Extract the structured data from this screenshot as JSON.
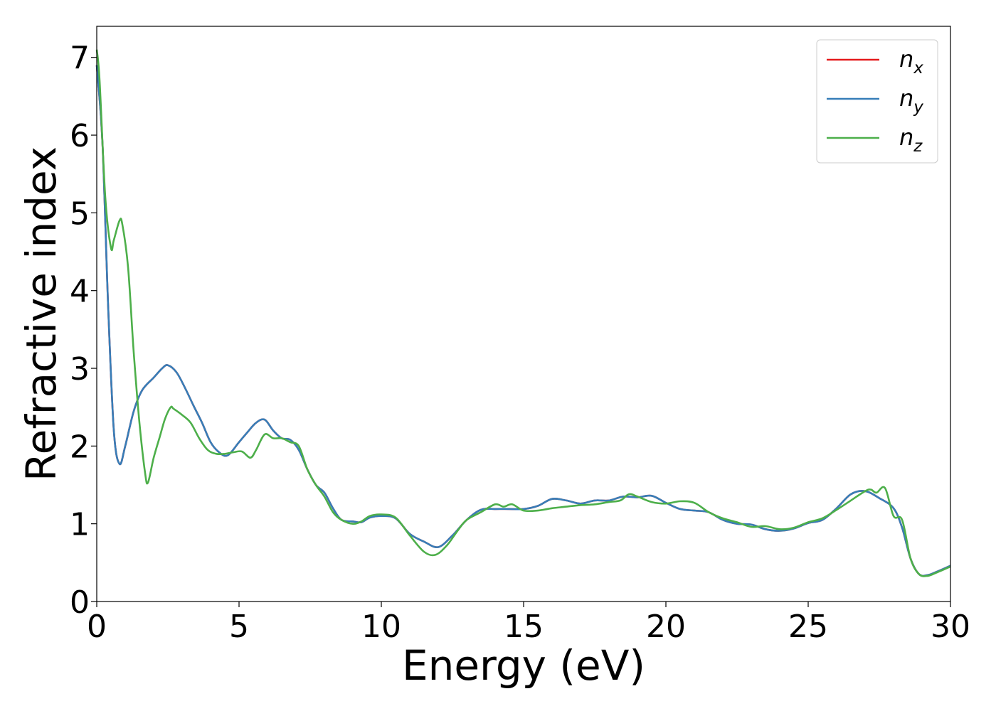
{
  "chart_data": {
    "type": "line",
    "title": "",
    "xlabel": "Energy (eV)",
    "ylabel": "Refractive index",
    "xlim": [
      0,
      30
    ],
    "ylim": [
      0,
      7.4
    ],
    "xticks": [
      0,
      5,
      10,
      15,
      20,
      25,
      30
    ],
    "yticks": [
      0,
      1,
      2,
      3,
      4,
      5,
      6,
      7
    ],
    "grid": false,
    "legend_position": "top-right",
    "series": [
      {
        "name": "n",
        "subscript": "x",
        "color": "#e41a1c",
        "x": [
          0,
          0.2,
          0.4,
          0.6,
          0.8,
          1.0,
          1.3,
          1.6,
          2.0,
          2.3,
          2.5,
          2.8,
          3.1,
          3.4,
          3.7,
          4.0,
          4.3,
          4.6,
          5.0,
          5.3,
          5.6,
          5.9,
          6.2,
          6.5,
          6.8,
          7.1,
          7.4,
          7.7,
          8.0,
          8.3,
          8.6,
          9.0,
          9.3,
          9.6,
          10.0,
          10.5,
          11.0,
          11.5,
          12.0,
          12.5,
          13.0,
          13.5,
          14.0,
          14.5,
          15.0,
          15.5,
          16.0,
          16.5,
          17.0,
          17.5,
          18.0,
          18.5,
          19.0,
          19.5,
          20.0,
          20.5,
          21.0,
          21.5,
          22.0,
          22.5,
          23.0,
          23.5,
          24.0,
          24.5,
          25.0,
          25.5,
          26.0,
          26.5,
          27.0,
          27.5,
          28.0,
          28.3,
          28.6,
          28.9,
          29.2,
          29.5,
          30.0
        ],
        "y": [
          6.9,
          5.9,
          3.8,
          2.2,
          1.77,
          2.0,
          2.45,
          2.72,
          2.88,
          3.0,
          3.04,
          2.95,
          2.75,
          2.52,
          2.3,
          2.05,
          1.92,
          1.88,
          2.05,
          2.18,
          2.3,
          2.34,
          2.2,
          2.1,
          2.08,
          1.95,
          1.7,
          1.5,
          1.4,
          1.2,
          1.05,
          1.03,
          1.02,
          1.08,
          1.1,
          1.07,
          0.87,
          0.77,
          0.7,
          0.85,
          1.05,
          1.18,
          1.19,
          1.19,
          1.19,
          1.23,
          1.32,
          1.3,
          1.26,
          1.3,
          1.3,
          1.35,
          1.34,
          1.36,
          1.27,
          1.19,
          1.17,
          1.15,
          1.05,
          1.0,
          0.99,
          0.93,
          0.91,
          0.94,
          1.01,
          1.05,
          1.2,
          1.38,
          1.42,
          1.33,
          1.2,
          0.95,
          0.55,
          0.35,
          0.34,
          0.38,
          0.46
        ]
      },
      {
        "name": "n",
        "subscript": "y",
        "color": "#377eb8",
        "x": [
          0,
          0.2,
          0.4,
          0.6,
          0.8,
          1.0,
          1.3,
          1.6,
          2.0,
          2.3,
          2.5,
          2.8,
          3.1,
          3.4,
          3.7,
          4.0,
          4.3,
          4.6,
          5.0,
          5.3,
          5.6,
          5.9,
          6.2,
          6.5,
          6.8,
          7.1,
          7.4,
          7.7,
          8.0,
          8.3,
          8.6,
          9.0,
          9.3,
          9.6,
          10.0,
          10.5,
          11.0,
          11.5,
          12.0,
          12.5,
          13.0,
          13.5,
          14.0,
          14.5,
          15.0,
          15.5,
          16.0,
          16.5,
          17.0,
          17.5,
          18.0,
          18.5,
          19.0,
          19.5,
          20.0,
          20.5,
          21.0,
          21.5,
          22.0,
          22.5,
          23.0,
          23.5,
          24.0,
          24.5,
          25.0,
          25.5,
          26.0,
          26.5,
          27.0,
          27.5,
          28.0,
          28.3,
          28.6,
          28.9,
          29.2,
          29.5,
          30.0
        ],
        "y": [
          6.9,
          5.9,
          3.8,
          2.2,
          1.77,
          2.0,
          2.45,
          2.72,
          2.88,
          3.0,
          3.04,
          2.95,
          2.75,
          2.52,
          2.3,
          2.05,
          1.92,
          1.88,
          2.05,
          2.18,
          2.3,
          2.34,
          2.2,
          2.1,
          2.08,
          1.95,
          1.7,
          1.5,
          1.4,
          1.2,
          1.05,
          1.03,
          1.02,
          1.08,
          1.1,
          1.07,
          0.87,
          0.77,
          0.7,
          0.85,
          1.05,
          1.18,
          1.19,
          1.19,
          1.19,
          1.23,
          1.32,
          1.3,
          1.26,
          1.3,
          1.3,
          1.35,
          1.34,
          1.36,
          1.27,
          1.19,
          1.17,
          1.15,
          1.05,
          1.0,
          0.99,
          0.93,
          0.91,
          0.94,
          1.01,
          1.05,
          1.2,
          1.38,
          1.42,
          1.33,
          1.2,
          0.95,
          0.55,
          0.35,
          0.34,
          0.38,
          0.46
        ]
      },
      {
        "name": "n",
        "subscript": "z",
        "color": "#4daf4a",
        "x": [
          0,
          0.1,
          0.3,
          0.5,
          0.6,
          0.8,
          0.9,
          1.1,
          1.3,
          1.5,
          1.7,
          1.8,
          2.0,
          2.2,
          2.4,
          2.6,
          2.7,
          3.0,
          3.3,
          3.6,
          3.9,
          4.2,
          4.5,
          4.8,
          5.1,
          5.4,
          5.6,
          5.9,
          6.2,
          6.5,
          6.8,
          7.1,
          7.4,
          7.7,
          8.0,
          8.3,
          8.6,
          9.0,
          9.3,
          9.6,
          10.0,
          10.5,
          11.0,
          11.5,
          11.9,
          12.3,
          12.7,
          13.0,
          13.5,
          14.0,
          14.3,
          14.6,
          15.0,
          15.5,
          16.0,
          16.5,
          17.0,
          17.5,
          18.0,
          18.4,
          18.7,
          19.0,
          19.5,
          20.0,
          20.5,
          21.0,
          21.5,
          22.0,
          22.5,
          23.0,
          23.5,
          24.0,
          24.5,
          25.0,
          25.5,
          26.0,
          26.5,
          27.0,
          27.2,
          27.4,
          27.7,
          28.0,
          28.3,
          28.6,
          28.9,
          29.2,
          29.5,
          30.0
        ],
        "y": [
          7.1,
          6.7,
          5.2,
          4.55,
          4.65,
          4.9,
          4.85,
          4.3,
          3.2,
          2.3,
          1.65,
          1.53,
          1.85,
          2.1,
          2.35,
          2.5,
          2.48,
          2.4,
          2.3,
          2.1,
          1.95,
          1.9,
          1.9,
          1.92,
          1.93,
          1.85,
          1.95,
          2.15,
          2.1,
          2.1,
          2.05,
          2.0,
          1.7,
          1.5,
          1.35,
          1.15,
          1.05,
          1.0,
          1.03,
          1.1,
          1.12,
          1.08,
          0.85,
          0.64,
          0.6,
          0.72,
          0.92,
          1.05,
          1.15,
          1.25,
          1.22,
          1.25,
          1.17,
          1.17,
          1.2,
          1.22,
          1.24,
          1.25,
          1.28,
          1.3,
          1.38,
          1.35,
          1.28,
          1.26,
          1.29,
          1.27,
          1.15,
          1.07,
          1.02,
          0.96,
          0.97,
          0.93,
          0.95,
          1.02,
          1.07,
          1.18,
          1.3,
          1.42,
          1.44,
          1.4,
          1.46,
          1.1,
          1.05,
          0.55,
          0.35,
          0.33,
          0.37,
          0.45
        ]
      }
    ]
  }
}
